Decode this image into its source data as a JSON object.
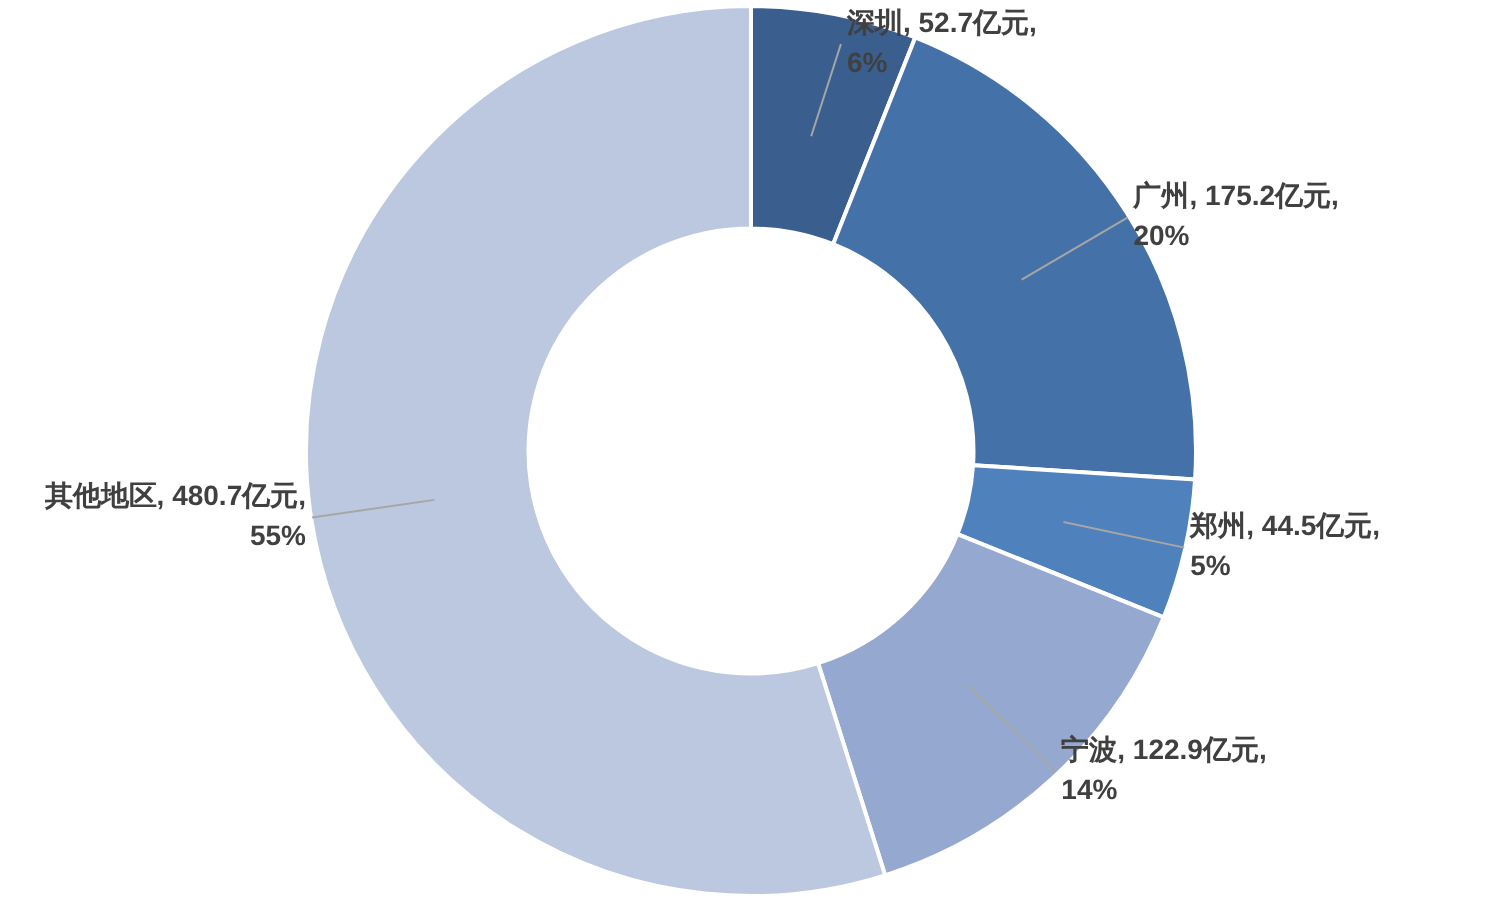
{
  "chart_data": {
    "type": "donut",
    "categories": [
      "深圳",
      "广州",
      "郑州",
      "宁波",
      "其他地区"
    ],
    "values": [
      52.7,
      175.2,
      44.5,
      122.9,
      480.7
    ],
    "colors": [
      "#3a5f8f",
      "#4472a8",
      "#4f81bd",
      "#95a9d0",
      "#bcc8e0"
    ],
    "value_labels": [
      "52.7亿元, 6%",
      "175.2亿元, 20%",
      "44.5亿元, 5%",
      "122.9亿元, 14%",
      "480.7亿元, 55%"
    ],
    "legend": false
  }
}
